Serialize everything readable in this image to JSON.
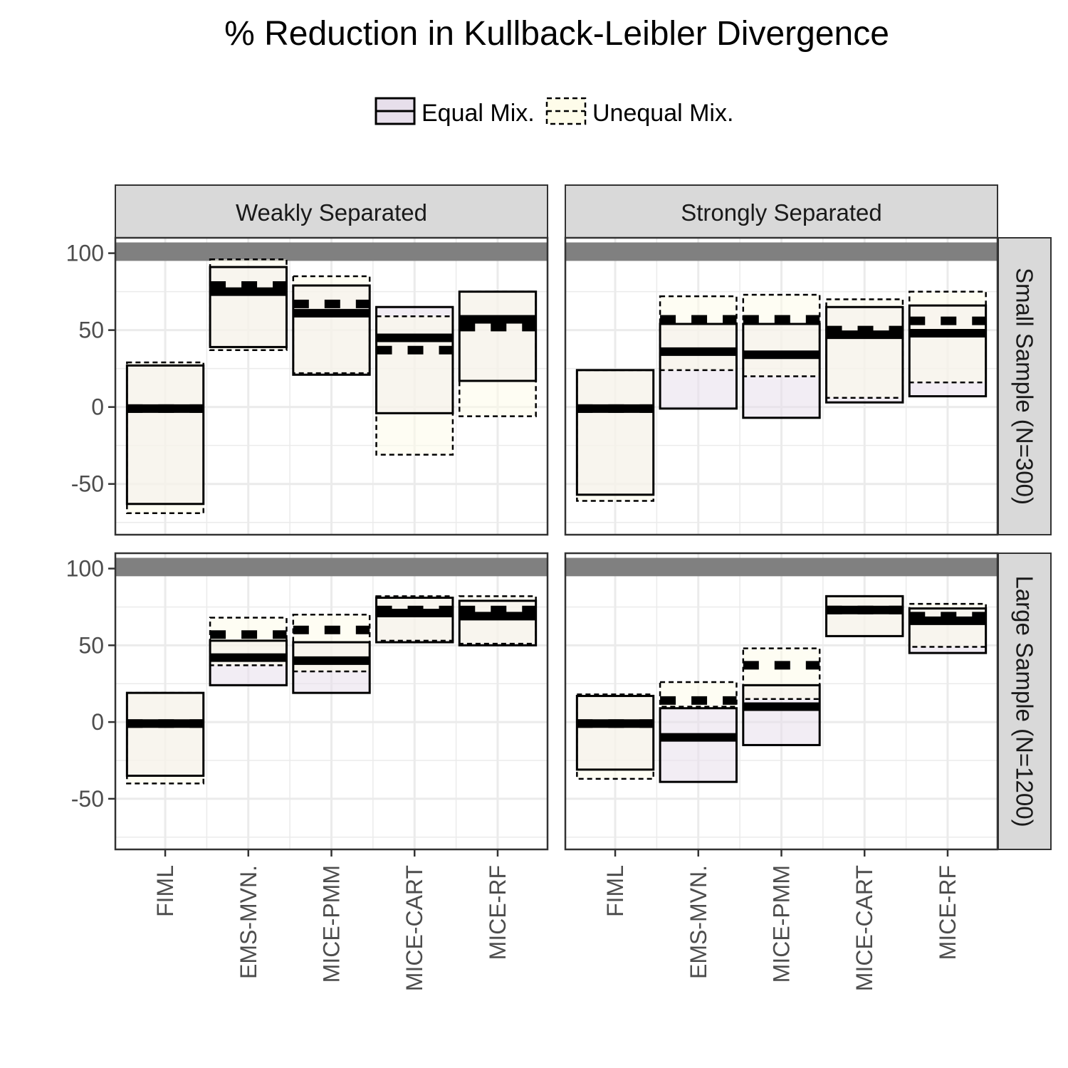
{
  "chart_data": {
    "type": "box",
    "title": "% Reduction in Kullback-Leibler Divergence",
    "legend": {
      "position": "top",
      "entries": [
        {
          "name": "Equal Mix.",
          "fill": "#e7dfeb",
          "linestyle": "solid"
        },
        {
          "name": "Unequal Mix.",
          "fill": "#fefcea",
          "linestyle": "dashed"
        }
      ]
    },
    "categories": [
      "FIML",
      "EMS-MVN.",
      "MICE-PMM",
      "MICE-CART",
      "MICE-RF"
    ],
    "columns": [
      "Weakly Separated",
      "Strongly Separated"
    ],
    "rows": [
      "Small Sample (N=300)",
      "Large Sample (N=1200)"
    ],
    "yticks": [
      -50,
      0,
      50,
      100
    ],
    "ylim": [
      -83,
      110
    ],
    "reference_band": [
      95,
      107
    ],
    "grid": true,
    "panels": [
      {
        "column": "Weakly Separated",
        "row": "Small Sample (N=300)",
        "series": [
          {
            "name": "Equal Mix.",
            "boxes": [
              {
                "low": -63,
                "high": 27,
                "median": -1
              },
              {
                "low": 39,
                "high": 91,
                "median": 75
              },
              {
                "low": 21,
                "high": 79,
                "median": 61
              },
              {
                "low": -4,
                "high": 65,
                "median": 45
              },
              {
                "low": 17,
                "high": 75,
                "median": 57
              }
            ]
          },
          {
            "name": "Unequal Mix.",
            "boxes": [
              {
                "low": -69,
                "high": 29,
                "median": -1
              },
              {
                "low": 37,
                "high": 96,
                "median": 79
              },
              {
                "low": 22,
                "high": 85,
                "median": 67
              },
              {
                "low": -31,
                "high": 59,
                "median": 37
              },
              {
                "low": -6,
                "high": 75,
                "median": 52
              }
            ]
          }
        ]
      },
      {
        "column": "Strongly Separated",
        "row": "Small Sample (N=300)",
        "series": [
          {
            "name": "Equal Mix.",
            "boxes": [
              {
                "low": -57,
                "high": 24,
                "median": -1
              },
              {
                "low": -1,
                "high": 54,
                "median": 36
              },
              {
                "low": -7,
                "high": 54,
                "median": 34
              },
              {
                "low": 3,
                "high": 65,
                "median": 47
              },
              {
                "low": 7,
                "high": 66,
                "median": 48
              }
            ]
          },
          {
            "name": "Unequal Mix.",
            "boxes": [
              {
                "low": -61,
                "high": 24,
                "median": -1
              },
              {
                "low": 24,
                "high": 72,
                "median": 57
              },
              {
                "low": 20,
                "high": 73,
                "median": 57
              },
              {
                "low": 6,
                "high": 70,
                "median": 50
              },
              {
                "low": 16,
                "high": 75,
                "median": 56
              }
            ]
          }
        ]
      },
      {
        "column": "Weakly Separated",
        "row": "Large Sample (N=1200)",
        "series": [
          {
            "name": "Equal Mix.",
            "boxes": [
              {
                "low": -35,
                "high": 19,
                "median": -1
              },
              {
                "low": 24,
                "high": 53,
                "median": 42
              },
              {
                "low": 19,
                "high": 52,
                "median": 40
              },
              {
                "low": 52,
                "high": 81,
                "median": 71
              },
              {
                "low": 50,
                "high": 79,
                "median": 69
              }
            ]
          },
          {
            "name": "Unequal Mix.",
            "boxes": [
              {
                "low": -40,
                "high": 19,
                "median": -1
              },
              {
                "low": 37,
                "high": 68,
                "median": 57
              },
              {
                "low": 33,
                "high": 70,
                "median": 60
              },
              {
                "low": 53,
                "high": 82,
                "median": 73
              },
              {
                "low": 51,
                "high": 82,
                "median": 73
              }
            ]
          }
        ]
      },
      {
        "column": "Strongly Separated",
        "row": "Large Sample (N=1200)",
        "series": [
          {
            "name": "Equal Mix.",
            "boxes": [
              {
                "low": -31,
                "high": 17,
                "median": -1
              },
              {
                "low": -39,
                "high": 9,
                "median": -10
              },
              {
                "low": -15,
                "high": 24,
                "median": 10
              },
              {
                "low": 56,
                "high": 82,
                "median": 73
              },
              {
                "low": 45,
                "high": 74,
                "median": 66
              }
            ]
          },
          {
            "name": "Unequal Mix.",
            "boxes": [
              {
                "low": -37,
                "high": 18,
                "median": -1
              },
              {
                "low": 10,
                "high": 26,
                "median": 14
              },
              {
                "low": 15,
                "high": 48,
                "median": 37
              },
              {
                "low": 56,
                "high": 82,
                "median": 73
              },
              {
                "low": 49,
                "high": 77,
                "median": 69
              }
            ]
          }
        ]
      }
    ]
  }
}
